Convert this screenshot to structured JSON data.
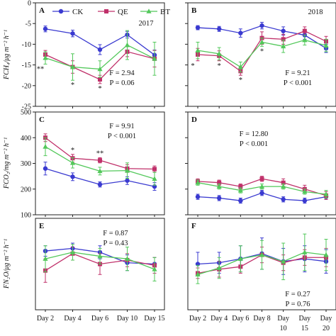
{
  "colors": {
    "CK": "#3a3ad0",
    "QE": "#c0306a",
    "BT": "#52c85a"
  },
  "legend": [
    "CK",
    "QE",
    "BT"
  ],
  "years": {
    "left": "2017",
    "right": "2018"
  },
  "y_axis_labels": [
    "FCH₄/μg m⁻² h⁻¹",
    "FCO₂/mg m⁻² h⁻¹",
    "FN₂O/μg m⁻² h⁻¹"
  ],
  "chart_data": [
    {
      "type": "line",
      "panel": "A",
      "ylim": [
        -25,
        0
      ],
      "yticks": [
        0,
        -5,
        -10,
        -15,
        -20,
        -25
      ],
      "categories": [
        "Day 2",
        "Day 4",
        "Day 6",
        "Day 10",
        "Day 15"
      ],
      "series": [
        {
          "name": "CK",
          "values": [
            -6.3,
            -7.4,
            -11.3,
            -7.7,
            -12.6
          ],
          "err": [
            0.7,
            0.8,
            1.2,
            0.8,
            1.2
          ]
        },
        {
          "name": "QE",
          "values": [
            -12.5,
            -15.5,
            -18.5,
            -11.8,
            -13.5
          ],
          "err": [
            1.0,
            1.5,
            1.0,
            1.2,
            2.0
          ]
        },
        {
          "name": "BT",
          "values": [
            -13.3,
            -15.5,
            -16.0,
            -10.2,
            -13.5
          ],
          "err": [
            1.5,
            3.2,
            2.0,
            3.5,
            4.0
          ]
        }
      ],
      "sig": [
        "**",
        "*",
        "*",
        "",
        ""
      ],
      "stat": [
        "F = 2.94",
        "P = 0.06"
      ]
    },
    {
      "type": "line",
      "panel": "B",
      "ylim": [
        -25,
        0
      ],
      "yticks": [
        0,
        -5,
        -10,
        -15,
        -20,
        -25
      ],
      "categories": [
        "Day 2",
        "Day 4",
        "Day 6",
        "Day 8",
        "Day 10",
        "Day 15",
        "Day 20"
      ],
      "series": [
        {
          "name": "CK",
          "values": [
            -6.0,
            -6.3,
            -7.3,
            -5.5,
            -6.8,
            -7.8,
            -11.0
          ],
          "err": [
            0.5,
            0.6,
            1.0,
            0.8,
            1.0,
            1.0,
            1.0
          ]
        },
        {
          "name": "QE",
          "values": [
            -12.5,
            -12.8,
            -16.5,
            -8.5,
            -8.8,
            -6.8,
            -9.3
          ],
          "err": [
            1.5,
            1.2,
            1.0,
            1.5,
            1.2,
            1.0,
            1.2
          ]
        },
        {
          "name": "BT",
          "values": [
            -11.5,
            -12.3,
            -15.5,
            -9.5,
            -10.5,
            -9.0,
            -10.3
          ],
          "err": [
            2.0,
            1.5,
            1.2,
            1.0,
            1.5,
            1.2,
            1.5
          ]
        }
      ],
      "sig": [
        "*",
        "*",
        "*",
        "*",
        "",
        "",
        ""
      ],
      "stat": [
        "F = 9.21",
        "P < 0.001"
      ]
    },
    {
      "type": "line",
      "panel": "C",
      "ylim": [
        100,
        500
      ],
      "yticks": [
        100,
        200,
        300,
        400,
        500
      ],
      "categories": [
        "Day 2",
        "Day 4",
        "Day 6",
        "Day 10",
        "Day 15"
      ],
      "series": [
        {
          "name": "CK",
          "values": [
            280,
            248,
            218,
            233,
            210
          ],
          "err": [
            25,
            15,
            10,
            15,
            15
          ]
        },
        {
          "name": "QE",
          "values": [
            400,
            320,
            312,
            280,
            278
          ],
          "err": [
            15,
            15,
            10,
            15,
            12
          ]
        },
        {
          "name": "BT",
          "values": [
            365,
            302,
            270,
            272,
            240
          ],
          "err": [
            35,
            20,
            15,
            30,
            25
          ]
        }
      ],
      "sig": [
        "",
        "*",
        "**",
        "",
        ""
      ],
      "stat": [
        "F = 9.91",
        "P < 0.001"
      ]
    },
    {
      "type": "line",
      "panel": "D",
      "ylim": [
        100,
        500
      ],
      "yticks": [
        100,
        200,
        300,
        400,
        500
      ],
      "categories": [
        "Day 2",
        "Day 4",
        "Day 6",
        "Day 8",
        "Day 10",
        "Day 15",
        "Day 20"
      ],
      "series": [
        {
          "name": "CK",
          "values": [
            170,
            165,
            155,
            185,
            160,
            155,
            170
          ],
          "err": [
            10,
            10,
            10,
            10,
            10,
            10,
            10
          ]
        },
        {
          "name": "QE",
          "values": [
            230,
            225,
            210,
            240,
            225,
            200,
            175
          ],
          "err": [
            10,
            10,
            10,
            10,
            15,
            15,
            15
          ]
        },
        {
          "name": "BT",
          "values": [
            225,
            210,
            195,
            210,
            210,
            190,
            180
          ],
          "err": [
            10,
            10,
            10,
            10,
            10,
            10,
            15
          ]
        }
      ],
      "sig": [
        "",
        "",
        "",
        "",
        "",
        "",
        ""
      ],
      "stat": [
        "F = 12.80",
        "P < 0.001"
      ]
    },
    {
      "type": "line",
      "panel": "E",
      "categories": [
        "Day 2",
        "Day 4",
        "Day 6",
        "Day 10",
        "Day 15"
      ],
      "series": [
        {
          "name": "CK",
          "values": [
            3.75,
            3.85,
            3.7,
            3.3,
            3.25
          ],
          "err": [
            0.2,
            0.2,
            0.25,
            0.3,
            0.25
          ]
        },
        {
          "name": "QE",
          "values": [
            3.0,
            3.65,
            3.25,
            3.4,
            3.2
          ],
          "err": [
            0.45,
            0.25,
            0.4,
            0.25,
            0.3
          ]
        },
        {
          "name": "BT",
          "values": [
            3.45,
            3.7,
            3.55,
            3.45,
            3.05
          ],
          "err": [
            0.5,
            0.3,
            0.3,
            0.45,
            0.45
          ]
        }
      ],
      "sig": [
        "",
        "",
        "",
        "",
        ""
      ],
      "stat": [
        "F = 0.87",
        "P = 0.43"
      ]
    },
    {
      "type": "line",
      "panel": "F",
      "categories": [
        "Day 2",
        "Day 4",
        "Day 6",
        "Day 8",
        "Day 10",
        "Day 15",
        "Day 20"
      ],
      "series": [
        {
          "name": "CK",
          "values": [
            3.25,
            3.3,
            3.45,
            3.65,
            3.35,
            3.45,
            3.35
          ],
          "err": [
            0.45,
            0.4,
            0.5,
            0.6,
            0.5,
            0.5,
            0.45
          ]
        },
        {
          "name": "QE",
          "values": [
            2.9,
            3.05,
            3.15,
            3.6,
            3.3,
            3.5,
            3.5
          ],
          "err": [
            0.2,
            0.3,
            0.25,
            0.3,
            0.3,
            0.3,
            0.35
          ]
        },
        {
          "name": "BT",
          "values": [
            2.85,
            3.1,
            3.45,
            3.6,
            3.35,
            3.7,
            3.6
          ],
          "err": [
            0.35,
            0.4,
            0.5,
            0.55,
            0.7,
            0.7,
            0.6
          ]
        }
      ],
      "sig": [
        "",
        "",
        "",
        "",
        "",
        "",
        ""
      ],
      "stat": [
        "F = 0.27",
        "P = 0.76"
      ]
    }
  ]
}
